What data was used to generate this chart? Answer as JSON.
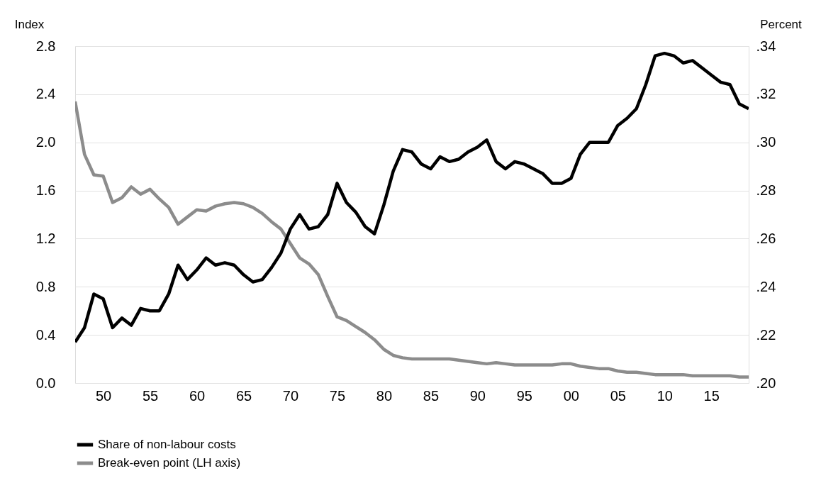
{
  "chart_data": {
    "type": "line",
    "x": [
      1947,
      1948,
      1949,
      1950,
      1951,
      1952,
      1953,
      1954,
      1955,
      1956,
      1957,
      1958,
      1959,
      1960,
      1961,
      1962,
      1963,
      1964,
      1965,
      1966,
      1967,
      1968,
      1969,
      1970,
      1971,
      1972,
      1973,
      1974,
      1975,
      1976,
      1977,
      1978,
      1979,
      1980,
      1981,
      1982,
      1983,
      1984,
      1985,
      1986,
      1987,
      1988,
      1989,
      1990,
      1991,
      1992,
      1993,
      1994,
      1995,
      1996,
      1997,
      1998,
      1999,
      2000,
      2001,
      2002,
      2003,
      2004,
      2005,
      2006,
      2007,
      2008,
      2009,
      2010,
      2011,
      2012,
      2013,
      2014,
      2015,
      2016,
      2017,
      2018,
      2019
    ],
    "series": [
      {
        "name": "Share of non-labour costs",
        "color": "#000000",
        "axis": "y2",
        "values": [
          0.217,
          0.223,
          0.237,
          0.235,
          0.223,
          0.227,
          0.224,
          0.231,
          0.23,
          0.23,
          0.237,
          0.249,
          0.243,
          0.247,
          0.252,
          0.249,
          0.25,
          0.249,
          0.245,
          0.242,
          0.243,
          0.248,
          0.254,
          0.264,
          0.27,
          0.264,
          0.265,
          0.27,
          0.283,
          0.275,
          0.271,
          0.265,
          0.262,
          0.274,
          0.288,
          0.297,
          0.296,
          0.291,
          0.289,
          0.294,
          0.292,
          0.293,
          0.296,
          0.298,
          0.301,
          0.292,
          0.289,
          0.292,
          0.291,
          0.289,
          0.287,
          0.283,
          0.283,
          0.285,
          0.295,
          0.3,
          0.3,
          0.3,
          0.307,
          0.31,
          0.314,
          0.324,
          0.336,
          0.337,
          0.336,
          0.333,
          0.334,
          0.331,
          0.328,
          0.325,
          0.324,
          0.316,
          0.314
        ]
      },
      {
        "name": "Break-even point (LH axis)",
        "color": "#8c8c8c",
        "values": [
          2.34,
          1.9,
          1.73,
          1.72,
          1.5,
          1.54,
          1.63,
          1.57,
          1.61,
          1.53,
          1.46,
          1.32,
          1.38,
          1.44,
          1.43,
          1.47,
          1.49,
          1.5,
          1.49,
          1.46,
          1.41,
          1.34,
          1.28,
          1.16,
          1.04,
          0.99,
          0.9,
          0.72,
          0.55,
          0.52,
          0.47,
          0.42,
          0.36,
          0.28,
          0.23,
          0.21,
          0.2,
          0.2,
          0.2,
          0.2,
          0.2,
          0.19,
          0.18,
          0.17,
          0.16,
          0.17,
          0.16,
          0.15,
          0.15,
          0.15,
          0.15,
          0.15,
          0.16,
          0.16,
          0.14,
          0.13,
          0.12,
          0.12,
          0.1,
          0.09,
          0.09,
          0.08,
          0.07,
          0.07,
          0.07,
          0.07,
          0.06,
          0.06,
          0.06,
          0.06,
          0.06,
          0.05,
          0.05
        ]
      }
    ],
    "ylabel": "Index",
    "y2label": "Percent",
    "xlim": [
      1947,
      2019
    ],
    "xticks": [
      {
        "value": 1950,
        "label": "50"
      },
      {
        "value": 1955,
        "label": "55"
      },
      {
        "value": 1960,
        "label": "60"
      },
      {
        "value": 1965,
        "label": "65"
      },
      {
        "value": 1970,
        "label": "70"
      },
      {
        "value": 1975,
        "label": "75"
      },
      {
        "value": 1980,
        "label": "80"
      },
      {
        "value": 1985,
        "label": "85"
      },
      {
        "value": 1990,
        "label": "90"
      },
      {
        "value": 1995,
        "label": "95"
      },
      {
        "value": 2000,
        "label": "00"
      },
      {
        "value": 2005,
        "label": "05"
      },
      {
        "value": 2010,
        "label": "10"
      },
      {
        "value": 2015,
        "label": "15"
      }
    ],
    "ylim": [
      0,
      2.8
    ],
    "yticks": [
      {
        "value": 0,
        "label": "0.0"
      },
      {
        "value": 0.4,
        "label": "0.4"
      },
      {
        "value": 0.8,
        "label": "0.8"
      },
      {
        "value": 1.2,
        "label": "1.2"
      },
      {
        "value": 1.6,
        "label": "1.6"
      },
      {
        "value": 2,
        "label": "2.0"
      },
      {
        "value": 2.4,
        "label": "2.4"
      },
      {
        "value": 2.8,
        "label": "2.8"
      }
    ],
    "y2lim": [
      0.2,
      0.34
    ],
    "y2ticks": [
      {
        "value": 0.2,
        "label": ".20"
      },
      {
        "value": 0.22,
        "label": ".22"
      },
      {
        "value": 0.24,
        "label": ".24"
      },
      {
        "value": 0.26,
        "label": ".26"
      },
      {
        "value": 0.28,
        "label": ".28"
      },
      {
        "value": 0.3,
        "label": ".30"
      },
      {
        "value": 0.32,
        "label": ".32"
      },
      {
        "value": 0.34,
        "label": ".34"
      }
    ],
    "grid": "y",
    "legend": "bottom",
    "line_style": "solid",
    "marker": "none"
  }
}
